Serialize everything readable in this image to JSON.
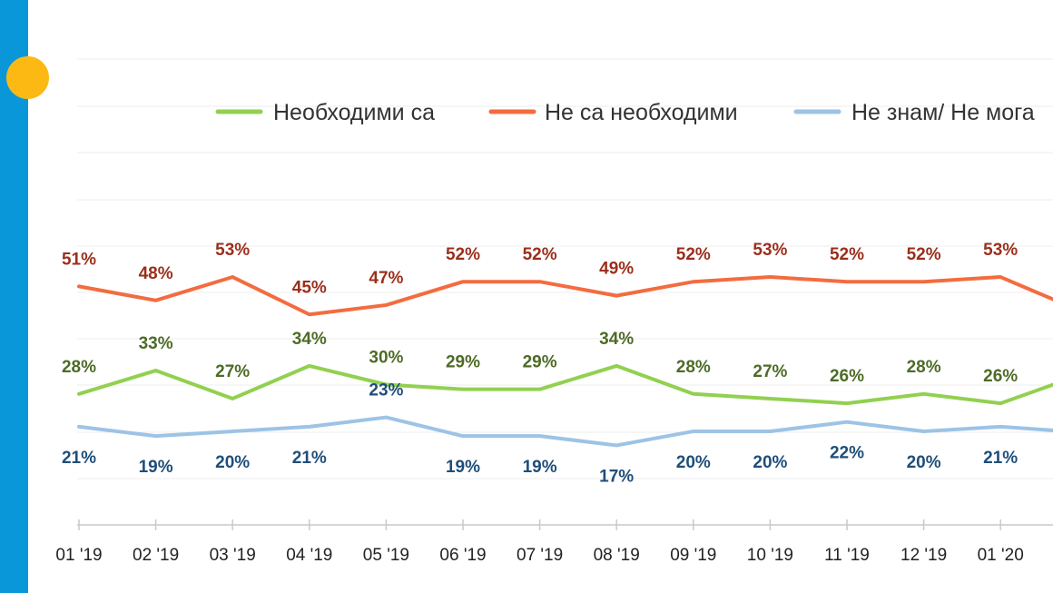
{
  "chart_data": {
    "type": "line",
    "title": "",
    "xlabel": "",
    "ylabel": "",
    "ylim": [
      0,
      100
    ],
    "categories": [
      "01 '19",
      "02 '19",
      "03 '19",
      "04 '19",
      "05 '19",
      "06 '19",
      "07 '19",
      "08 '19",
      "09 '19",
      "10 '19",
      "11 '19",
      "12 '19",
      "01 '20"
    ],
    "series": [
      {
        "name": "Необходими са",
        "color": "#92d050",
        "values": [
          28,
          33,
          27,
          34,
          30,
          29,
          29,
          34,
          28,
          27,
          26,
          28,
          26
        ],
        "labels": [
          "28%",
          "33%",
          "27%",
          "34%",
          "30%",
          "29%",
          "29%",
          "34%",
          "28%",
          "27%",
          "26%",
          "28%",
          "26%"
        ],
        "label_color": "#4e6b27",
        "label_pos": [
          "above",
          "above",
          "above",
          "above",
          "above",
          "above",
          "above",
          "above",
          "above",
          "above",
          "above",
          "above",
          "above"
        ]
      },
      {
        "name": "Не са необходими",
        "color": "#f36c3f",
        "values": [
          51,
          48,
          53,
          45,
          47,
          52,
          52,
          49,
          52,
          53,
          52,
          52,
          53
        ],
        "labels": [
          "51%",
          "48%",
          "53%",
          "45%",
          "47%",
          "52%",
          "52%",
          "49%",
          "52%",
          "53%",
          "52%",
          "52%",
          "53%"
        ],
        "label_color": "#9b2f1c",
        "label_pos": [
          "above",
          "above",
          "above",
          "above",
          "above",
          "above",
          "above",
          "above",
          "above",
          "above",
          "above",
          "above",
          "above"
        ]
      },
      {
        "name": "Не знам/ Не мога",
        "color": "#9dc3e6",
        "values": [
          21,
          19,
          20,
          21,
          23,
          19,
          19,
          17,
          20,
          20,
          22,
          20,
          21
        ],
        "labels": [
          "21%",
          "19%",
          "20%",
          "21%",
          "23%",
          "19%",
          "19%",
          "17%",
          "20%",
          "20%",
          "22%",
          "20%",
          "21%"
        ],
        "label_color": "#1f4e79",
        "label_pos": [
          "below",
          "below",
          "below",
          "below",
          "above",
          "below",
          "below",
          "below",
          "below",
          "below",
          "below",
          "below",
          "below"
        ]
      }
    ],
    "next_period": {
      "values": [
        31,
        47,
        20
      ]
    },
    "legend": "top",
    "grid": true
  }
}
